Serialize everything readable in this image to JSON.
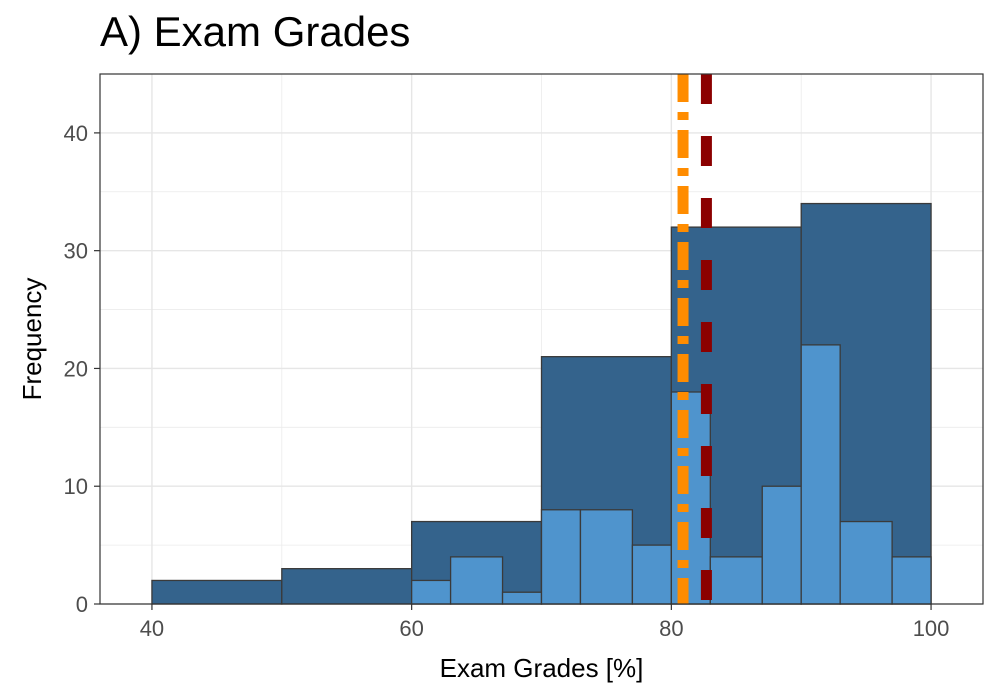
{
  "chart_data": {
    "type": "bar",
    "title": "A) Exam Grades",
    "xlabel": "Exam Grades [%]",
    "ylabel": "Frequency",
    "xlim": [
      36,
      104
    ],
    "ylim": [
      0,
      45
    ],
    "xticks": [
      40,
      60,
      80,
      100
    ],
    "yticks": [
      0,
      10,
      20,
      30,
      40
    ],
    "grid": true,
    "series": [
      {
        "bins": [
          [
            40,
            50
          ],
          [
            50,
            60
          ],
          [
            60,
            70
          ],
          [
            70,
            80
          ],
          [
            80,
            90
          ],
          [
            90,
            100
          ]
        ],
        "values": [
          2,
          3,
          7,
          21,
          32,
          34
        ],
        "color": "#34638c"
      },
      {
        "bins": [
          [
            60,
            63
          ],
          [
            63,
            67
          ],
          [
            67,
            70
          ],
          [
            70,
            73
          ],
          [
            73,
            77
          ],
          [
            77,
            80
          ],
          [
            80,
            83
          ],
          [
            83,
            87
          ],
          [
            87,
            90
          ],
          [
            90,
            93
          ],
          [
            93,
            97
          ],
          [
            97,
            100
          ]
        ],
        "values": [
          2,
          4,
          1,
          8,
          8,
          5,
          18,
          4,
          10,
          22,
          7,
          4
        ],
        "color": "#4f94cd"
      }
    ],
    "reference_lines": [
      {
        "x": 80.9,
        "color": "#ff8c00",
        "style": "dashdot"
      },
      {
        "x": 82.7,
        "color": "#8b0000",
        "style": "dashed"
      }
    ]
  }
}
